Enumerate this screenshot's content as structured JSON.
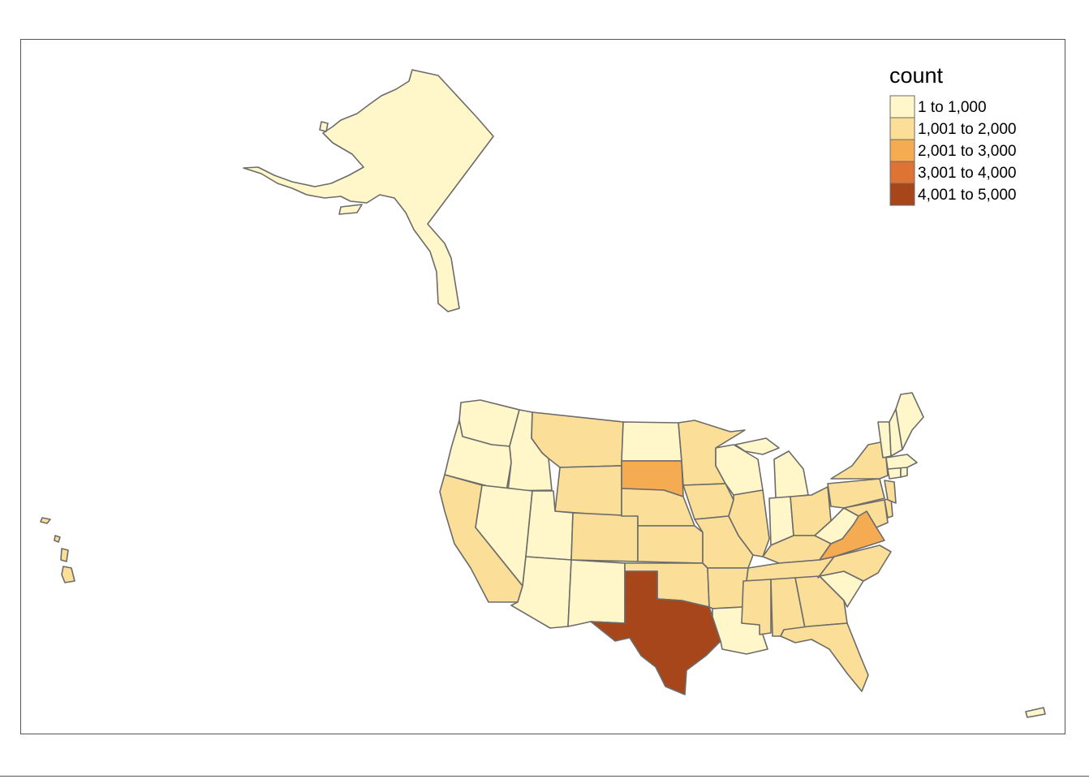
{
  "legend": {
    "title": "count",
    "bins": [
      {
        "label": "1 to 1,000",
        "color": "#fff7c9"
      },
      {
        "label": "1,001 to 2,000",
        "color": "#fbde97"
      },
      {
        "label": "2,001 to 3,000",
        "color": "#f4ab52"
      },
      {
        "label": "3,001 to 4,000",
        "color": "#df7333"
      },
      {
        "label": "4,001 to 5,000",
        "color": "#a8461b"
      }
    ]
  },
  "chart_data": {
    "type": "choropleth",
    "region": "United States (by state)",
    "value_name": "count",
    "legend_placement": "top-right",
    "states": [
      {
        "state": "Alaska",
        "bin": 0
      },
      {
        "state": "Hawaii",
        "bin": 1
      },
      {
        "state": "Washington",
        "bin": 0
      },
      {
        "state": "Oregon",
        "bin": 0
      },
      {
        "state": "California",
        "bin": 1
      },
      {
        "state": "Idaho",
        "bin": 0
      },
      {
        "state": "Nevada",
        "bin": 0
      },
      {
        "state": "Montana",
        "bin": 1
      },
      {
        "state": "Wyoming",
        "bin": 1
      },
      {
        "state": "Utah",
        "bin": 0
      },
      {
        "state": "Arizona",
        "bin": 0
      },
      {
        "state": "Colorado",
        "bin": 1
      },
      {
        "state": "New Mexico",
        "bin": 0
      },
      {
        "state": "North Dakota",
        "bin": 0
      },
      {
        "state": "South Dakota",
        "bin": 2
      },
      {
        "state": "Nebraska",
        "bin": 1
      },
      {
        "state": "Kansas",
        "bin": 1
      },
      {
        "state": "Oklahoma",
        "bin": 1
      },
      {
        "state": "Texas",
        "bin": 4
      },
      {
        "state": "Minnesota",
        "bin": 1
      },
      {
        "state": "Iowa",
        "bin": 1
      },
      {
        "state": "Missouri",
        "bin": 1
      },
      {
        "state": "Arkansas",
        "bin": 1
      },
      {
        "state": "Louisiana",
        "bin": 0
      },
      {
        "state": "Wisconsin",
        "bin": 0
      },
      {
        "state": "Illinois",
        "bin": 1
      },
      {
        "state": "Michigan",
        "bin": 0
      },
      {
        "state": "Indiana",
        "bin": 0
      },
      {
        "state": "Ohio",
        "bin": 1
      },
      {
        "state": "Kentucky",
        "bin": 1
      },
      {
        "state": "Tennessee",
        "bin": 1
      },
      {
        "state": "Mississippi",
        "bin": 1
      },
      {
        "state": "Alabama",
        "bin": 1
      },
      {
        "state": "Georgia",
        "bin": 1
      },
      {
        "state": "Florida",
        "bin": 1
      },
      {
        "state": "South Carolina",
        "bin": 0
      },
      {
        "state": "North Carolina",
        "bin": 1
      },
      {
        "state": "Virginia",
        "bin": 2
      },
      {
        "state": "West Virginia",
        "bin": 0
      },
      {
        "state": "Pennsylvania",
        "bin": 1
      },
      {
        "state": "New York",
        "bin": 1
      },
      {
        "state": "Maryland",
        "bin": 1
      },
      {
        "state": "Delaware",
        "bin": 1
      },
      {
        "state": "New Jersey",
        "bin": 1
      },
      {
        "state": "Connecticut",
        "bin": 0
      },
      {
        "state": "Rhode Island",
        "bin": 0
      },
      {
        "state": "Massachusetts",
        "bin": 0
      },
      {
        "state": "Vermont",
        "bin": 0
      },
      {
        "state": "New Hampshire",
        "bin": 0
      },
      {
        "state": "Maine",
        "bin": 0
      },
      {
        "state": "Puerto Rico",
        "bin": 0
      }
    ]
  }
}
